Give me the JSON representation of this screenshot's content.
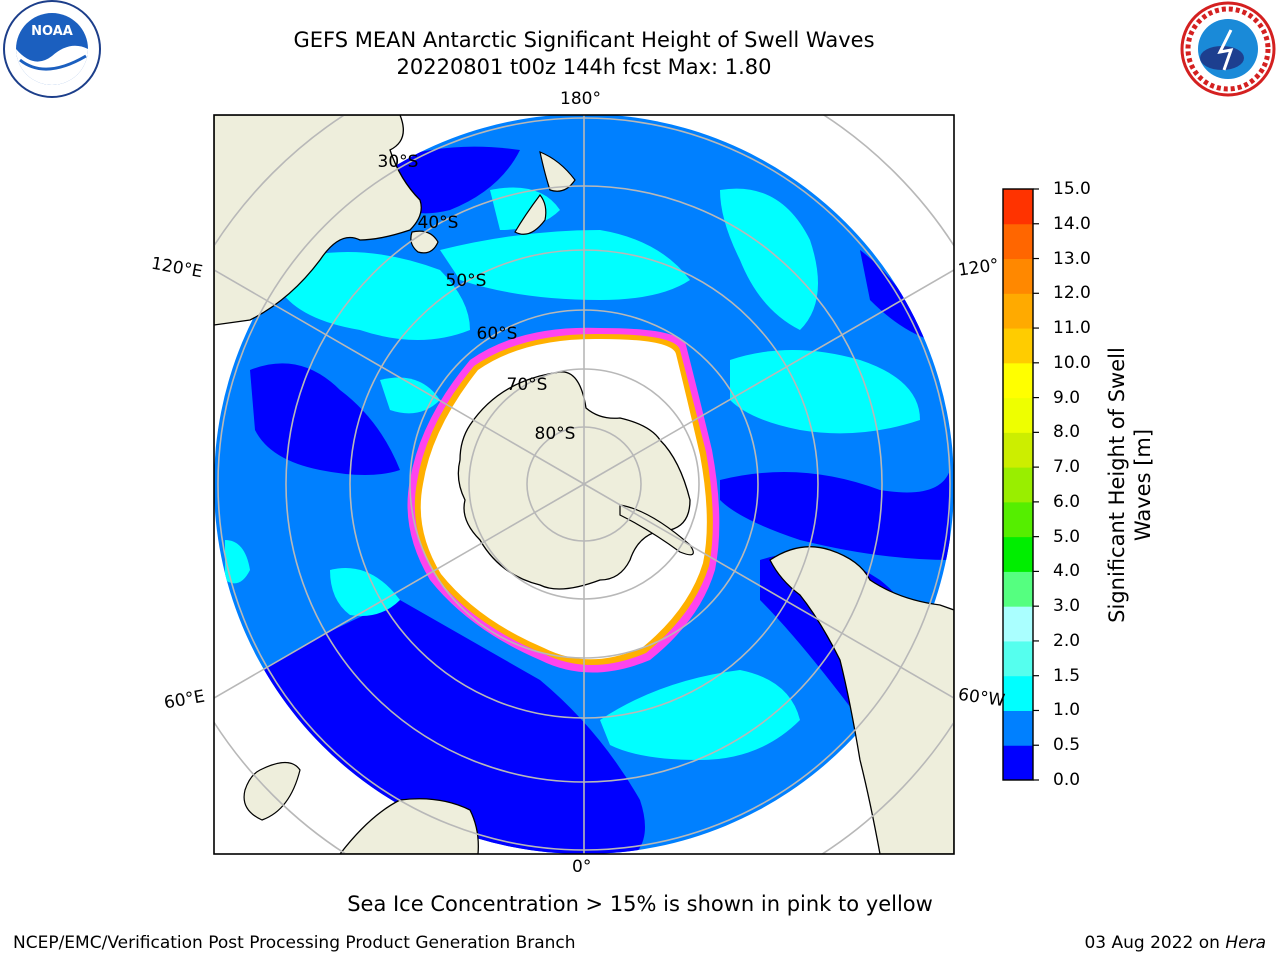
{
  "title": {
    "line1": "GEFS MEAN Antarctic Significant Height of Swell Waves",
    "line2": "20220801 t00z 144h fcst   Max: 1.80"
  },
  "logos": {
    "noaa_text": "NOAA",
    "nws_text": "NATIONAL WEATHER SERVICE"
  },
  "map": {
    "projection": "south-polar-stereographic",
    "lon_labels": {
      "top": "180°",
      "bottom": "0°",
      "left_upper": "120°E",
      "left_lower": "60°E",
      "right_upper": "120°",
      "right_lower": "60°W"
    },
    "lat_labels": [
      "30°S",
      "40°S",
      "50°S",
      "60°S",
      "70°S",
      "80°S"
    ],
    "colors": {
      "land": "#eeeedc",
      "sea_ice": "#ffffff",
      "ice_edge": "#ff44ee",
      "ice_edge_inner": "#ffb000",
      "graticule": "#b8b8b8"
    }
  },
  "colorbar": {
    "label": "Significant Height of Swell Waves [m]",
    "ticks": [
      "0.0",
      "0.5",
      "1.0",
      "1.5",
      "2.0",
      "3.0",
      "4.0",
      "5.0",
      "6.0",
      "7.0",
      "8.0",
      "9.0",
      "10.0",
      "11.0",
      "12.0",
      "13.0",
      "14.0",
      "15.0"
    ],
    "colors": [
      "#0000ff",
      "#0080ff",
      "#00ffff",
      "#55ffee",
      "#aaffff",
      "#55ff80",
      "#00ee00",
      "#55ee00",
      "#99ee00",
      "#ccee00",
      "#eeff00",
      "#ffff00",
      "#ffcc00",
      "#ffaa00",
      "#ff8800",
      "#ff6600",
      "#ff3300",
      "#ff0000"
    ]
  },
  "chart_data": {
    "type": "heatmap",
    "title": "GEFS MEAN Antarctic Significant Height of Swell Waves",
    "subtitle": "20220801 t00z 144h fcst   Max: 1.80",
    "variable": "Significant Height of Swell Waves [m]",
    "max_value": 1.8,
    "levels": [
      0.0,
      0.5,
      1.0,
      1.5,
      2.0,
      3.0,
      4.0,
      5.0,
      6.0,
      7.0,
      8.0,
      9.0,
      10.0,
      11.0,
      12.0,
      13.0,
      14.0,
      15.0
    ],
    "annotation": "Sea Ice Concentration > 15% is shown in pink to yellow"
  },
  "footnote": "Sea Ice Concentration > 15% is shown in pink to yellow",
  "footer": {
    "left": "NCEP/EMC/Verification Post Processing Product Generation Branch",
    "right_date": "03 Aug 2022 on ",
    "right_host": "Hera"
  }
}
